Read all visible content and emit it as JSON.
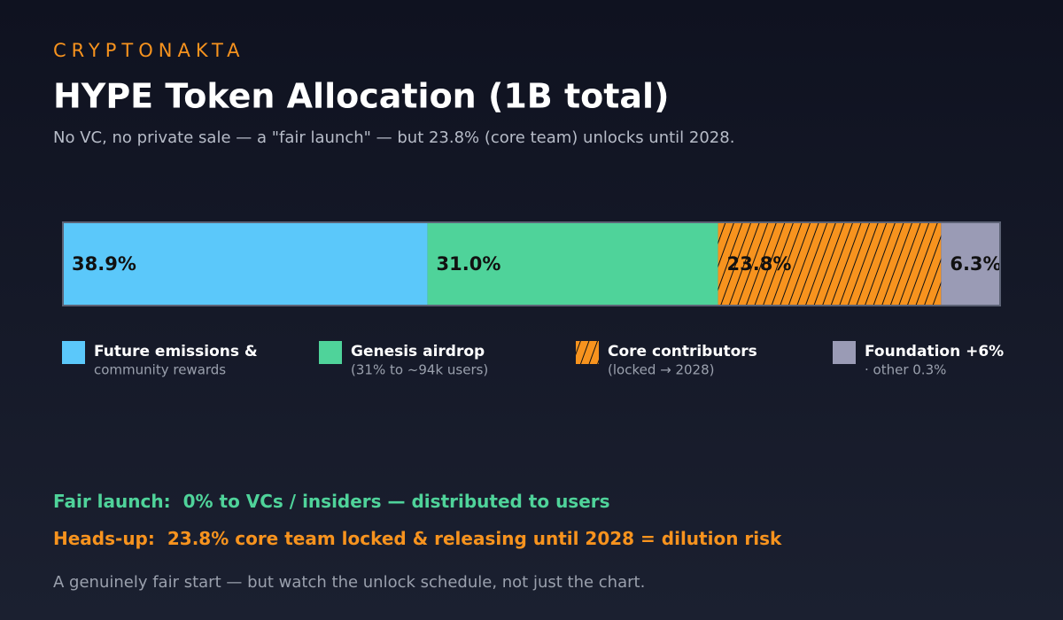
{
  "brand": "CRYPTONAKTA",
  "chart_data": {
    "type": "stacked-bar",
    "title": "HYPE Token Allocation (1B total)",
    "subtitle": "No VC, no private sale — a \"fair launch\" — but 23.8% (core team) unlocks until 2028.",
    "xlim": [
      0,
      100
    ],
    "series": [
      {
        "name": "Future emissions &",
        "description": "community rewards",
        "color": "#5bc8fa",
        "values": [
          38.9
        ],
        "value_labels": [
          "38.9%"
        ]
      },
      {
        "name": "Genesis airdrop",
        "description": "(31% to ~94k users)",
        "color": "#4fd39a",
        "values": [
          31.0
        ],
        "value_labels": [
          "31.0%"
        ]
      },
      {
        "name": "Core contributors",
        "description": "(locked → 2028)",
        "color": "#f7931e",
        "pattern": "hatch",
        "values": [
          23.8
        ],
        "value_labels": [
          "23.8%"
        ]
      },
      {
        "name": "Foundation +6%",
        "description": "· other 0.3%",
        "color": "#9a9bb5",
        "values": [
          6.3
        ],
        "value_labels": [
          "6.3%"
        ]
      }
    ]
  },
  "annotations": [
    {
      "label": "Fair launch:",
      "text": "0% to VCs / insiders — distributed to users",
      "color": "#4fd39a"
    },
    {
      "label": "Heads-up:",
      "text": "23.8% core team locked & releasing until 2028 = dilution risk",
      "color": "#f7931e"
    }
  ],
  "footnote": "A genuinely fair start — but watch the unlock schedule, not just the chart."
}
